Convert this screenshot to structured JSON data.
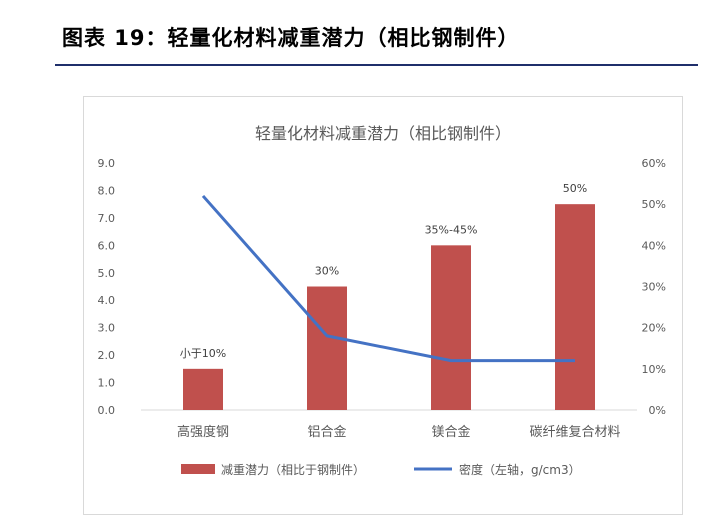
{
  "figure": {
    "title": "图表 19：轻量化材料减重潜力（相比钢制件）"
  },
  "chart_data": {
    "type": "bar+line",
    "title": "轻量化材料减重潜力（相比钢制件）",
    "categories": [
      "高强度钢",
      "铝合金",
      "镁合金",
      "碳纤维复合材料"
    ],
    "left_axis": {
      "min": 0,
      "max": 9,
      "step": 1,
      "ticks": [
        "0.0",
        "1.0",
        "2.0",
        "3.0",
        "4.0",
        "5.0",
        "6.0",
        "7.0",
        "8.0",
        "9.0"
      ]
    },
    "right_axis": {
      "min": 0,
      "max": 60,
      "step": 10,
      "ticks": [
        "0%",
        "10%",
        "20%",
        "30%",
        "40%",
        "50%",
        "60%"
      ]
    },
    "series": [
      {
        "name": "减重潜力（相比于钢制件）",
        "kind": "bar",
        "axis": "right",
        "values": [
          10,
          30,
          40,
          50
        ],
        "data_labels": [
          "小于10%",
          "30%",
          "35%-45%",
          "50%"
        ],
        "color": "#c0504d"
      },
      {
        "name": "密度（左轴，g/cm3）",
        "kind": "line",
        "axis": "left",
        "values": [
          7.8,
          2.7,
          1.8,
          1.8
        ],
        "color": "#4472c4"
      }
    ],
    "grid": false,
    "legend_position": "bottom"
  }
}
